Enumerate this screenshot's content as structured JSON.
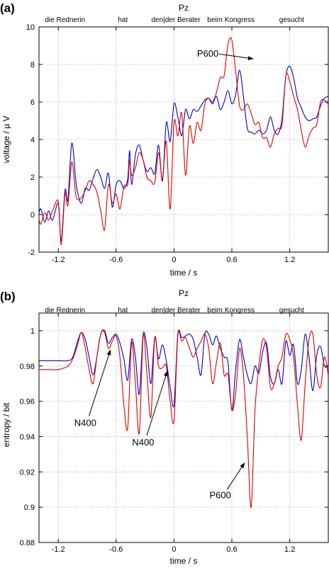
{
  "chart_data": [
    {
      "type": "line",
      "panel_label": "(a)",
      "title": "Pz",
      "xlabel": "time / s",
      "ylabel": "voltage / µ V",
      "xlim": [
        -1.4,
        1.6
      ],
      "ylim": [
        -2,
        10
      ],
      "xticks": [
        -1.2,
        -0.6,
        0,
        0.6,
        1.2
      ],
      "xtick_labels": [
        "-1.2",
        "-0.6",
        "0",
        "0.6",
        "1.2"
      ],
      "yticks": [
        -2,
        0,
        2,
        4,
        6,
        8,
        10
      ],
      "ytick_labels": [
        "-2",
        "0",
        "2",
        "4",
        "6",
        "8",
        "10"
      ],
      "grid": true,
      "words": [
        {
          "text": "die Rednerin",
          "t": -1.13
        },
        {
          "text": "hat",
          "t": -0.53
        },
        {
          "text": "den|der Berater",
          "t": 0.02
        },
        {
          "text": "beim Kongress",
          "t": 0.59
        },
        {
          "text": "gesucht",
          "t": 1.22
        }
      ],
      "series": [
        {
          "color": "#0000cc",
          "x": [
            -1.4,
            -1.38,
            -1.34,
            -1.3,
            -1.26,
            -1.2,
            -1.17,
            -1.13,
            -1.1,
            -1.06,
            -1.02,
            -1.0,
            -0.96,
            -0.92,
            -0.88,
            -0.84,
            -0.8,
            -0.76,
            -0.72,
            -0.68,
            -0.64,
            -0.6,
            -0.56,
            -0.52,
            -0.48,
            -0.46,
            -0.44,
            -0.4,
            -0.36,
            -0.32,
            -0.28,
            -0.24,
            -0.2,
            -0.16,
            -0.12,
            -0.08,
            -0.04,
            0.0,
            0.04,
            0.08,
            0.12,
            0.16,
            0.2,
            0.24,
            0.28,
            0.32,
            0.36,
            0.4,
            0.44,
            0.48,
            0.52,
            0.56,
            0.6,
            0.64,
            0.68,
            0.72,
            0.76,
            0.8,
            0.84,
            0.88,
            0.92,
            0.96,
            1.0,
            1.04,
            1.08,
            1.12,
            1.16,
            1.2,
            1.24,
            1.28,
            1.32,
            1.36,
            1.4,
            1.44,
            1.48,
            1.52,
            1.56,
            1.6
          ],
          "y": [
            0.1,
            0.3,
            -0.4,
            0.2,
            -0.3,
            0.6,
            -1.4,
            1.3,
            0.8,
            3.8,
            1.9,
            1.2,
            0.6,
            1.4,
            1.3,
            1.9,
            2.4,
            2.0,
            1.4,
            2.2,
            0.4,
            1.6,
            1.8,
            1.4,
            1.9,
            3.4,
            1.6,
            3.2,
            3.7,
            2.9,
            2.3,
            2.5,
            2.2,
            3.7,
            1.8,
            4.9,
            3.9,
            5.9,
            5.2,
            4.2,
            5.6,
            5.1,
            5.6,
            5.5,
            5.8,
            6.1,
            6.2,
            5.9,
            6.3,
            5.6,
            6.0,
            6.6,
            5.9,
            6.4,
            7.7,
            6.3,
            4.6,
            4.4,
            4.3,
            4.5,
            4.3,
            4.5,
            5.2,
            4.5,
            4.3,
            5.1,
            7.4,
            7.9,
            7.3,
            6.2,
            5.7,
            5.2,
            5.0,
            5.1,
            5.2,
            5.8,
            6.2,
            6.3
          ]
        },
        {
          "color": "#dd0000",
          "x": [
            -1.4,
            -1.38,
            -1.34,
            -1.3,
            -1.26,
            -1.2,
            -1.17,
            -1.13,
            -1.1,
            -1.06,
            -1.02,
            -1.0,
            -0.96,
            -0.92,
            -0.88,
            -0.84,
            -0.8,
            -0.76,
            -0.72,
            -0.68,
            -0.64,
            -0.6,
            -0.56,
            -0.52,
            -0.48,
            -0.46,
            -0.44,
            -0.4,
            -0.36,
            -0.32,
            -0.28,
            -0.24,
            -0.2,
            -0.16,
            -0.12,
            -0.08,
            -0.04,
            0.0,
            0.04,
            0.08,
            0.12,
            0.16,
            0.2,
            0.24,
            0.28,
            0.32,
            0.36,
            0.4,
            0.44,
            0.48,
            0.52,
            0.56,
            0.6,
            0.64,
            0.68,
            0.72,
            0.76,
            0.8,
            0.84,
            0.88,
            0.92,
            0.96,
            1.0,
            1.04,
            1.08,
            1.12,
            1.16,
            1.2,
            1.24,
            1.28,
            1.32,
            1.36,
            1.4,
            1.44,
            1.48,
            1.52,
            1.56,
            1.6
          ],
          "y": [
            -0.3,
            -0.5,
            0.1,
            -0.3,
            0.2,
            0.7,
            -1.6,
            1.1,
            0.5,
            2.8,
            1.1,
            0.8,
            0.9,
            1.3,
            1.8,
            1.6,
            1.2,
            0.2,
            -0.8,
            1.6,
            0.6,
            1.1,
            0.3,
            1.5,
            1.6,
            2.9,
            2.1,
            2.5,
            3.3,
            2.9,
            2.0,
            1.8,
            1.7,
            3.3,
            1.9,
            3.9,
            0.3,
            4.9,
            4.2,
            5.4,
            2.1,
            4.7,
            3.8,
            4.9,
            4.5,
            5.9,
            6.2,
            6.0,
            6.5,
            7.3,
            7.4,
            9.1,
            9.3,
            7.6,
            5.8,
            5.6,
            5.9,
            5.4,
            4.8,
            4.9,
            4.1,
            4.1,
            3.6,
            4.3,
            4.6,
            4.8,
            7.4,
            7.1,
            6.3,
            5.6,
            4.5,
            3.6,
            4.2,
            4.6,
            4.8,
            6.0,
            6.1,
            5.9
          ]
        }
      ],
      "annotations": [
        {
          "text": "P600",
          "text_x": 0.35,
          "text_y": 8.6,
          "arrow_to_x": 0.82,
          "arrow_to_y": 8.3
        }
      ]
    },
    {
      "type": "line",
      "panel_label": "(b)",
      "title": "Pz",
      "xlabel": "time / s",
      "ylabel": "entropy / bit",
      "xlim": [
        -1.4,
        1.6
      ],
      "ylim": [
        0.88,
        1.01
      ],
      "xticks": [
        -1.2,
        -0.6,
        0,
        0.6,
        1.2
      ],
      "xtick_labels": [
        "-1.2",
        "-0.6",
        "0",
        "0.6",
        "1.2"
      ],
      "yticks": [
        0.88,
        0.9,
        0.92,
        0.94,
        0.96,
        0.98,
        1
      ],
      "ytick_labels": [
        "0.88",
        "0.9",
        "0.92",
        "0.94",
        "0.96",
        "0.98",
        "1"
      ],
      "grid": true,
      "words": [
        {
          "text": "die Rednerin",
          "t": -1.13
        },
        {
          "text": "hat",
          "t": -0.53
        },
        {
          "text": "den|der Berater",
          "t": 0.02
        },
        {
          "text": "beim Kongress",
          "t": 0.59
        },
        {
          "text": "gesucht",
          "t": 1.22
        }
      ],
      "series": [
        {
          "color": "#0000cc",
          "x": [
            -1.4,
            -1.3,
            -1.2,
            -1.1,
            -1.05,
            -1.0,
            -0.96,
            -0.92,
            -0.88,
            -0.84,
            -0.8,
            -0.76,
            -0.72,
            -0.68,
            -0.64,
            -0.6,
            -0.56,
            -0.52,
            -0.48,
            -0.44,
            -0.4,
            -0.36,
            -0.32,
            -0.28,
            -0.24,
            -0.2,
            -0.16,
            -0.12,
            -0.08,
            -0.04,
            0.0,
            0.04,
            0.08,
            0.12,
            0.16,
            0.2,
            0.24,
            0.28,
            0.32,
            0.36,
            0.4,
            0.44,
            0.48,
            0.52,
            0.56,
            0.6,
            0.64,
            0.68,
            0.72,
            0.76,
            0.8,
            0.84,
            0.88,
            0.92,
            0.96,
            1.0,
            1.04,
            1.08,
            1.12,
            1.16,
            1.2,
            1.24,
            1.28,
            1.32,
            1.36,
            1.4,
            1.44,
            1.48,
            1.52,
            1.56,
            1.6
          ],
          "y": [
            0.983,
            0.983,
            0.983,
            0.983,
            0.985,
            0.994,
            0.999,
            0.995,
            0.985,
            0.975,
            0.985,
            0.998,
            1.0,
            0.993,
            0.996,
            0.998,
            0.993,
            0.984,
            0.972,
            0.995,
            0.985,
            0.964,
            0.998,
            0.99,
            0.97,
            0.996,
            0.984,
            0.992,
            0.983,
            0.968,
            0.958,
            0.998,
            0.996,
            0.997,
            0.998,
            0.995,
            0.985,
            0.975,
            0.998,
            0.998,
            0.992,
            0.997,
            0.99,
            0.985,
            0.982,
            0.955,
            0.978,
            0.995,
            0.985,
            0.975,
            0.97,
            0.98,
            0.976,
            0.988,
            0.993,
            0.974,
            0.97,
            0.978,
            0.97,
            0.994,
            0.986,
            0.992,
            0.97,
            0.978,
            0.998,
            0.985,
            0.966,
            0.986,
            0.991,
            0.98,
            0.98
          ]
        },
        {
          "color": "#dd0000",
          "x": [
            -1.4,
            -1.3,
            -1.2,
            -1.1,
            -1.05,
            -1.0,
            -0.96,
            -0.92,
            -0.88,
            -0.84,
            -0.8,
            -0.76,
            -0.72,
            -0.68,
            -0.64,
            -0.6,
            -0.56,
            -0.52,
            -0.48,
            -0.44,
            -0.4,
            -0.36,
            -0.32,
            -0.28,
            -0.24,
            -0.2,
            -0.16,
            -0.12,
            -0.08,
            -0.04,
            0.0,
            0.04,
            0.08,
            0.12,
            0.16,
            0.2,
            0.24,
            0.28,
            0.32,
            0.36,
            0.4,
            0.44,
            0.48,
            0.52,
            0.56,
            0.6,
            0.64,
            0.68,
            0.72,
            0.76,
            0.8,
            0.84,
            0.88,
            0.92,
            0.96,
            1.0,
            1.04,
            1.08,
            1.12,
            1.16,
            1.2,
            1.24,
            1.28,
            1.32,
            1.36,
            1.4,
            1.44,
            1.48,
            1.52,
            1.56,
            1.6
          ],
          "y": [
            0.978,
            0.978,
            0.978,
            0.98,
            0.984,
            0.992,
            0.999,
            0.99,
            0.978,
            0.97,
            0.985,
            0.998,
            0.999,
            0.99,
            0.994,
            0.997,
            0.985,
            0.958,
            0.945,
            0.993,
            0.97,
            0.942,
            0.997,
            0.975,
            0.951,
            0.996,
            0.98,
            0.979,
            0.98,
            0.96,
            0.949,
            0.997,
            0.994,
            0.996,
            0.99,
            0.985,
            0.99,
            0.994,
            0.998,
            0.99,
            0.97,
            0.982,
            0.993,
            0.975,
            0.975,
            0.955,
            0.965,
            0.99,
            0.975,
            0.94,
            0.9,
            0.955,
            0.98,
            0.995,
            0.99,
            0.968,
            0.97,
            0.98,
            0.985,
            0.998,
            0.995,
            0.985,
            0.958,
            0.938,
            0.97,
            0.995,
            0.998,
            0.975,
            0.968,
            0.985,
            0.975
          ]
        }
      ],
      "annotations": [
        {
          "text": "N400",
          "text_x": -0.92,
          "text_y": 0.948,
          "arrow_to_x": -0.66,
          "arrow_to_y": 0.989
        },
        {
          "text": "N400",
          "text_x": -0.32,
          "text_y": 0.937,
          "arrow_to_x": -0.07,
          "arrow_to_y": 0.977
        },
        {
          "text": "P600",
          "text_x": 0.48,
          "text_y": 0.907,
          "arrow_to_x": 0.73,
          "arrow_to_y": 0.925
        }
      ]
    }
  ]
}
